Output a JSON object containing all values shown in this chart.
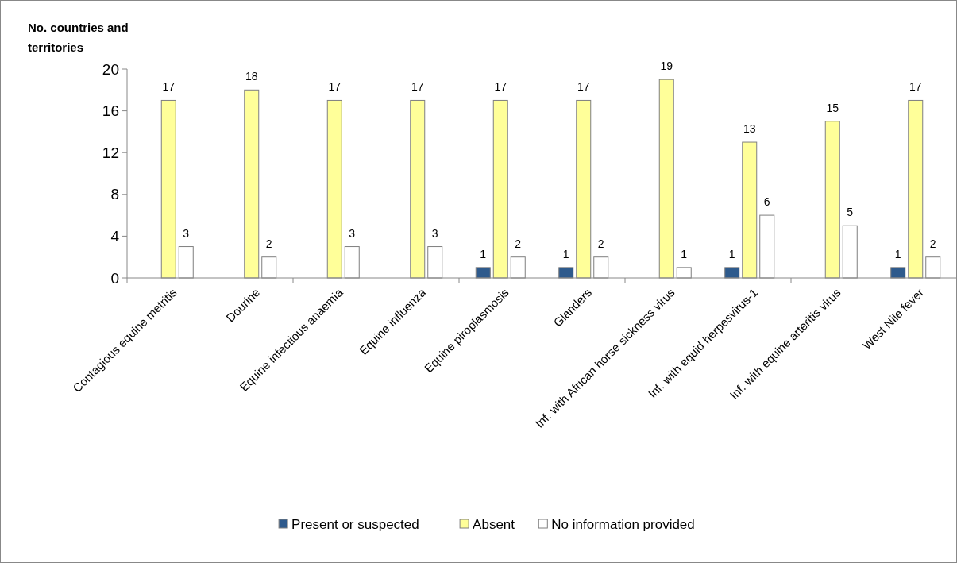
{
  "chart_data": {
    "type": "bar",
    "ylabel": "No. countries and territories",
    "categories": [
      "Contagious equine metritis",
      "Dourine",
      "Equine infectious anaemia",
      "Equine influenza",
      "Equine piroplasmosis",
      "Glanders",
      "Inf. with African horse sickness virus",
      "Inf. with equid herpesvirus-1",
      "Inf. with equine arteritis virus",
      "West Nile fever"
    ],
    "series": [
      {
        "name": "Present or suspected",
        "color": "#2e5a8c",
        "values": [
          null,
          null,
          null,
          null,
          1,
          1,
          null,
          1,
          null,
          1
        ]
      },
      {
        "name": "Absent",
        "color": "#ffff99",
        "values": [
          17,
          18,
          17,
          17,
          17,
          17,
          19,
          13,
          15,
          17
        ]
      },
      {
        "name": "No information provided",
        "color": "#ffffff",
        "values": [
          3,
          2,
          3,
          3,
          2,
          2,
          1,
          6,
          5,
          2
        ]
      }
    ],
    "ylim": [
      0,
      20
    ],
    "yticks": [
      0,
      4,
      8,
      12,
      16,
      20
    ],
    "grid": false,
    "legend": "bottom",
    "data_labels": true
  }
}
